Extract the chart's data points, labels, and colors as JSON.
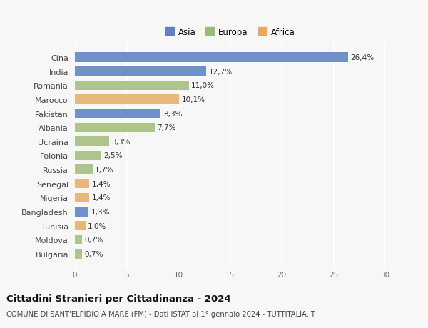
{
  "categories": [
    "Cina",
    "India",
    "Romania",
    "Marocco",
    "Pakistan",
    "Albania",
    "Ucraina",
    "Polonia",
    "Russia",
    "Senegal",
    "Nigeria",
    "Bangladesh",
    "Tunisia",
    "Moldova",
    "Bulgaria"
  ],
  "values": [
    26.4,
    12.7,
    11.0,
    10.1,
    8.3,
    7.7,
    3.3,
    2.5,
    1.7,
    1.4,
    1.4,
    1.3,
    1.0,
    0.7,
    0.7
  ],
  "labels": [
    "26,4%",
    "12,7%",
    "11,0%",
    "10,1%",
    "8,3%",
    "7,7%",
    "3,3%",
    "2,5%",
    "1,7%",
    "1,4%",
    "1,4%",
    "1,3%",
    "1,0%",
    "0,7%",
    "0,7%"
  ],
  "continent": [
    "Asia",
    "Asia",
    "Europa",
    "Africa",
    "Asia",
    "Europa",
    "Europa",
    "Europa",
    "Europa",
    "Africa",
    "Africa",
    "Asia",
    "Africa",
    "Europa",
    "Europa"
  ],
  "colors": {
    "Asia": "#7090c8",
    "Europa": "#adc48a",
    "Africa": "#e8b87a"
  },
  "legend_colors": {
    "Asia": "#6080be",
    "Europa": "#9dba78",
    "Africa": "#e8a85e"
  },
  "xlim": [
    0,
    30
  ],
  "xticks": [
    0,
    5,
    10,
    15,
    20,
    25,
    30
  ],
  "title": "Cittadini Stranieri per Cittadinanza - 2024",
  "subtitle": "COMUNE DI SANT'ELPIDIO A MARE (FM) - Dati ISTAT al 1° gennaio 2024 - TUTTITALIA.IT",
  "background_color": "#f7f7f7",
  "plot_bg_color": "#f7f7f7",
  "grid_color": "#ffffff",
  "bar_height": 0.68,
  "label_fontsize": 7.5,
  "ytick_fontsize": 8.0,
  "xtick_fontsize": 7.5,
  "legend_fontsize": 8.5,
  "title_fontsize": 9.5,
  "subtitle_fontsize": 7.2
}
